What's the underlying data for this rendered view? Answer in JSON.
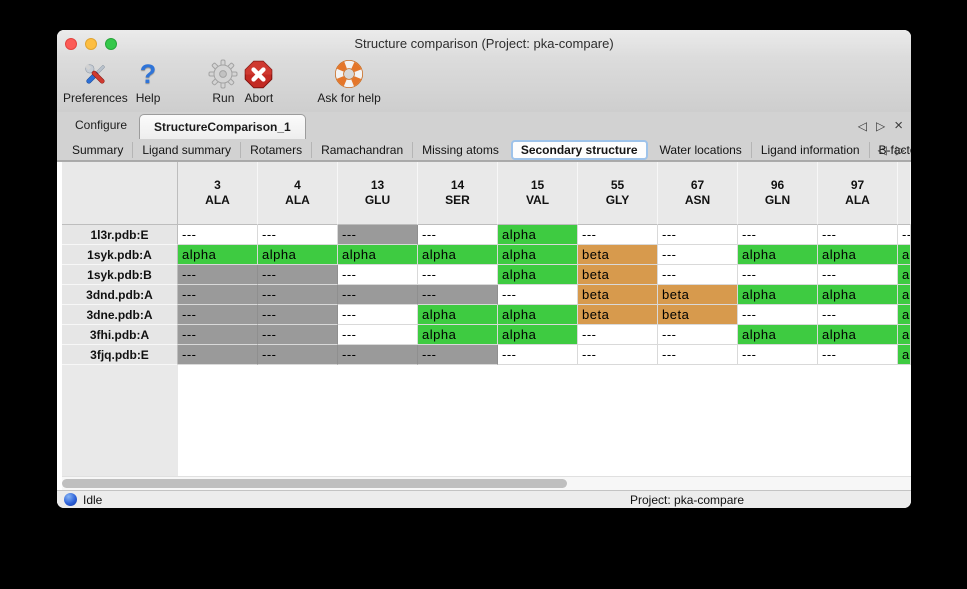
{
  "window": {
    "title": "Structure comparison (Project: pka-compare)"
  },
  "toolbar": {
    "items": [
      {
        "id": "preferences",
        "label": "Preferences",
        "icon": "tools-icon"
      },
      {
        "id": "help",
        "label": "Help",
        "icon": "question-mark-icon"
      },
      {
        "id": "run",
        "label": "Run",
        "icon": "gear-icon"
      },
      {
        "id": "abort",
        "label": "Abort",
        "icon": "stop-octagon-icon"
      },
      {
        "id": "ask-for-help",
        "label": "Ask for help",
        "icon": "lifebuoy-icon"
      }
    ]
  },
  "tabs": {
    "main": [
      {
        "label": "Configure",
        "selected": false
      },
      {
        "label": "StructureComparison_1",
        "selected": true
      }
    ],
    "controls": {
      "prev": "◁",
      "next": "▷",
      "close": "×"
    },
    "sub": [
      "Summary",
      "Ligand summary",
      "Rotamers",
      "Ramachandran",
      "Missing atoms",
      "Secondary structure",
      "Water locations",
      "Ligand information",
      "B-factors"
    ],
    "sub_selected": "Secondary structure",
    "sub_controls": {
      "prev": "◁",
      "next": "▷"
    }
  },
  "table": {
    "columns": [
      {
        "num": "3",
        "res": "ALA"
      },
      {
        "num": "4",
        "res": "ALA"
      },
      {
        "num": "13",
        "res": "GLU"
      },
      {
        "num": "14",
        "res": "SER"
      },
      {
        "num": "15",
        "res": "VAL"
      },
      {
        "num": "55",
        "res": "GLY"
      },
      {
        "num": "67",
        "res": "ASN"
      },
      {
        "num": "96",
        "res": "GLN"
      },
      {
        "num": "97",
        "res": "ALA"
      },
      {
        "num": "",
        "res": ""
      }
    ],
    "rows": [
      {
        "label": "1l3r.pdb:E",
        "cells": [
          [
            "---",
            "none"
          ],
          [
            "---",
            "gray-fill"
          ],
          [
            "---",
            "gray"
          ],
          [
            "---",
            "none"
          ],
          [
            "alpha",
            "green"
          ],
          [
            "---",
            "none"
          ],
          [
            "---",
            "none"
          ],
          [
            "---",
            "none"
          ],
          [
            "---",
            "none"
          ],
          [
            "---",
            "none"
          ]
        ]
      },
      {
        "label": "1syk.pdb:A",
        "cells": [
          [
            "alpha",
            "green"
          ],
          [
            "alpha",
            "green"
          ],
          [
            "alpha",
            "green"
          ],
          [
            "alpha",
            "green"
          ],
          [
            "alpha",
            "green"
          ],
          [
            "beta",
            "orange"
          ],
          [
            "---",
            "none"
          ],
          [
            "alpha",
            "green"
          ],
          [
            "alpha",
            "green"
          ],
          [
            "alpha",
            "green"
          ]
        ]
      },
      {
        "label": "1syk.pdb:B",
        "cells": [
          [
            "---",
            "gray"
          ],
          [
            "---",
            "gray"
          ],
          [
            "---",
            "none"
          ],
          [
            "---",
            "none"
          ],
          [
            "alpha",
            "green"
          ],
          [
            "beta",
            "orange"
          ],
          [
            "---",
            "none"
          ],
          [
            "---",
            "none"
          ],
          [
            "---",
            "none"
          ],
          [
            "alpha",
            "green"
          ]
        ]
      },
      {
        "label": "3dnd.pdb:A",
        "cells": [
          [
            "---",
            "gray"
          ],
          [
            "---",
            "gray"
          ],
          [
            "---",
            "gray"
          ],
          [
            "---",
            "gray"
          ],
          [
            "---",
            "none"
          ],
          [
            "beta",
            "orange"
          ],
          [
            "beta",
            "orange"
          ],
          [
            "alpha",
            "green"
          ],
          [
            "alpha",
            "green"
          ],
          [
            "alpha",
            "green"
          ]
        ]
      },
      {
        "label": "3dne.pdb:A",
        "cells": [
          [
            "---",
            "gray"
          ],
          [
            "---",
            "gray"
          ],
          [
            "---",
            "none"
          ],
          [
            "alpha",
            "green"
          ],
          [
            "alpha",
            "green"
          ],
          [
            "beta",
            "orange"
          ],
          [
            "beta",
            "orange"
          ],
          [
            "---",
            "none"
          ],
          [
            "---",
            "none"
          ],
          [
            "alpha",
            "green"
          ]
        ]
      },
      {
        "label": "3fhi.pdb:A",
        "cells": [
          [
            "---",
            "gray"
          ],
          [
            "---",
            "gray"
          ],
          [
            "---",
            "none"
          ],
          [
            "alpha",
            "green"
          ],
          [
            "alpha",
            "green"
          ],
          [
            "---",
            "none"
          ],
          [
            "---",
            "none"
          ],
          [
            "alpha",
            "green"
          ],
          [
            "alpha",
            "green"
          ],
          [
            "alpha",
            "green"
          ]
        ]
      },
      {
        "label": "3fjq.pdb:E",
        "cells": [
          [
            "---",
            "gray"
          ],
          [
            "---",
            "gray"
          ],
          [
            "---",
            "gray"
          ],
          [
            "---",
            "gray"
          ],
          [
            "---",
            "none"
          ],
          [
            "---",
            "none"
          ],
          [
            "---",
            "none"
          ],
          [
            "---",
            "none"
          ],
          [
            "---",
            "none"
          ],
          [
            "alpha",
            "green"
          ]
        ]
      }
    ]
  },
  "status": {
    "state": "Idle",
    "project": "Project: pka-compare"
  },
  "colors": {
    "alpha_green": "#3ecb41",
    "beta_orange": "#d79a4d",
    "missing_gray": "#9a9a9a",
    "cell_white": "#ffffff"
  }
}
